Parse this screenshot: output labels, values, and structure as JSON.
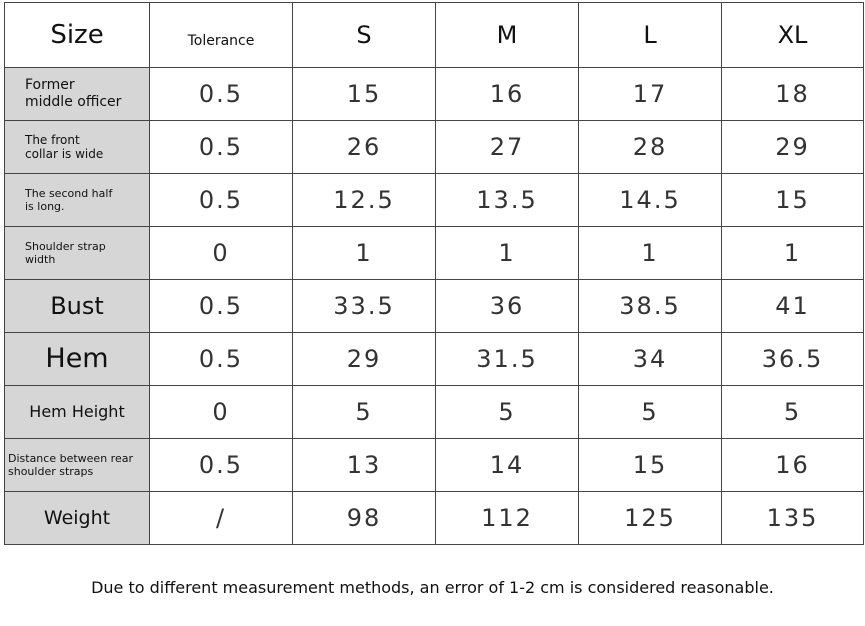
{
  "table": {
    "header": [
      "Size",
      "Tolerance",
      "S",
      "M",
      "L",
      "XL"
    ],
    "rows": [
      [
        "Former\nmiddle officer",
        "0.5",
        "15",
        "16",
        "17",
        "18"
      ],
      [
        "The front\ncollar is wide",
        "0.5",
        "26",
        "27",
        "28",
        "29"
      ],
      [
        "The second half\nis long.",
        "0.5",
        "12.5",
        "13.5",
        "14.5",
        "15"
      ],
      [
        "Shoulder strap\nwidth",
        "0",
        "1",
        "1",
        "1",
        "1"
      ],
      [
        "Bust",
        "0.5",
        "33.5",
        "36",
        "38.5",
        "41"
      ],
      [
        "Hem",
        "0.5",
        "29",
        "31.5",
        "34",
        "36.5"
      ],
      [
        "Hem Height",
        "0",
        "5",
        "5",
        "5",
        "5"
      ],
      [
        "Distance between rear\nshoulder straps",
        "0.5",
        "13",
        "14",
        "15",
        "16"
      ],
      [
        "Weight",
        "/",
        "98",
        "112",
        "125",
        "135"
      ]
    ]
  },
  "note": "Due to different measurement methods, an error of 1-2 cm is considered reasonable."
}
